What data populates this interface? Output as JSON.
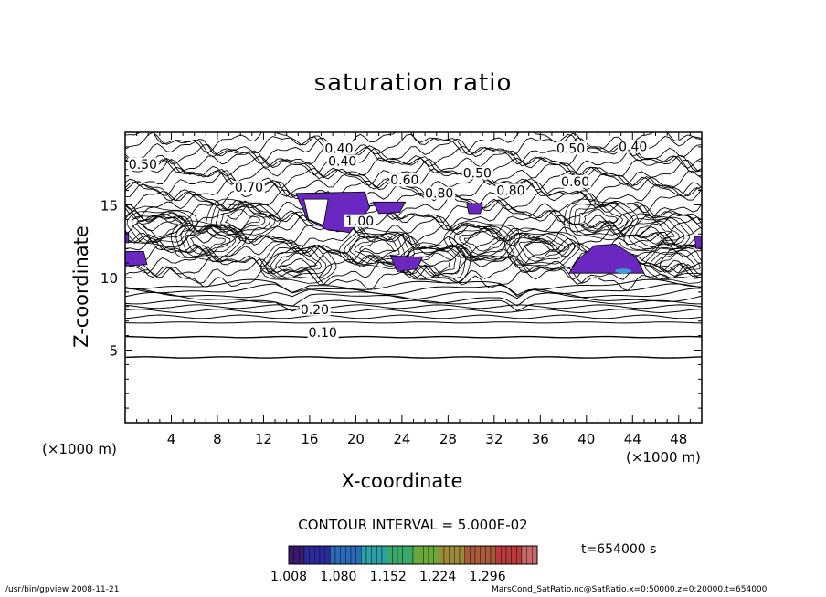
{
  "chart_data": {
    "type": "heatmap",
    "subtype": "contour",
    "title": "saturation ratio",
    "xlabel": "X-coordinate",
    "ylabel": "Z-coordinate",
    "x_unit": "(×1000 m)",
    "y_unit": "(×1000 m)",
    "xlim": [
      0,
      50
    ],
    "ylim": [
      0,
      20
    ],
    "x_ticks": [
      4,
      8,
      12,
      16,
      20,
      24,
      28,
      32,
      36,
      40,
      44,
      48
    ],
    "y_ticks": [
      5,
      10,
      15
    ],
    "contour_interval_text": "CONTOUR INTERVAL = 5.000E-02",
    "contour_labels": [
      {
        "text": "0.40",
        "x": 17.3,
        "z": 18.6
      },
      {
        "text": "0.40",
        "x": 17.6,
        "z": 17.7
      },
      {
        "text": "0.50",
        "x": 0.3,
        "z": 17.5
      },
      {
        "text": "0.50",
        "x": 29.3,
        "z": 16.9
      },
      {
        "text": "0.50",
        "x": 37.4,
        "z": 18.6
      },
      {
        "text": "0.40",
        "x": 42.8,
        "z": 18.7
      },
      {
        "text": "0.60",
        "x": 23.0,
        "z": 16.4
      },
      {
        "text": "0.60",
        "x": 37.8,
        "z": 16.3
      },
      {
        "text": "0.70",
        "x": 9.5,
        "z": 15.9
      },
      {
        "text": "0.80",
        "x": 26.0,
        "z": 15.5
      },
      {
        "text": "0.80",
        "x": 32.2,
        "z": 15.7
      },
      {
        "text": "1.00",
        "x": 19.1,
        "z": 13.6
      },
      {
        "text": "0.20",
        "x": 15.2,
        "z": 7.5
      },
      {
        "text": "0.10",
        "x": 15.9,
        "z": 5.9
      }
    ],
    "shaded_regions_note": "values above 1.0",
    "colorbar": {
      "min": 1.008,
      "max": 1.368,
      "tick_labels": [
        "1.008",
        "1.080",
        "1.152",
        "1.224",
        "1.296"
      ],
      "colors": [
        "#3a1a6e",
        "#2a2a9a",
        "#2a6ab8",
        "#2aa0a8",
        "#3aa86a",
        "#6aa83a",
        "#9a8a3a",
        "#a85a3a",
        "#b83a3a",
        "#c86a6a"
      ]
    },
    "shade_color": "#6a28c0",
    "time_label": "t=654000 s"
  },
  "footer": {
    "left": "/usr/bin/gpview   2008-11-21",
    "right": "MarsCond_SatRatio.nc@SatRatio,x=0:50000,z=0:20000,t=654000"
  }
}
